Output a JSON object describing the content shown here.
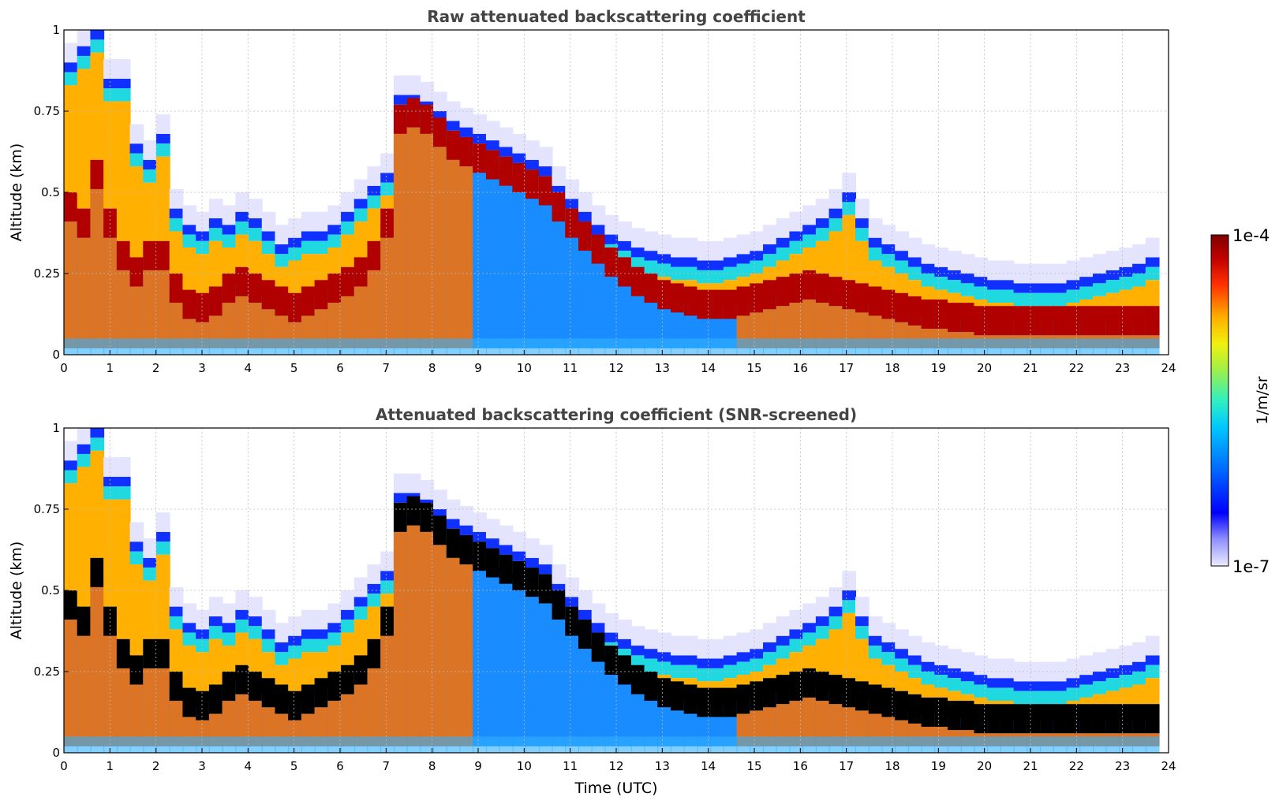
{
  "chart_data": [
    {
      "type": "heatmap",
      "title": "Raw attenuated backscattering coefficient",
      "xlabel": "",
      "ylabel": "Altitude (km)",
      "xlim": [
        0,
        24
      ],
      "ylim": [
        0,
        1
      ],
      "xticks": [
        "0",
        "1",
        "2",
        "3",
        "4",
        "5",
        "6",
        "7",
        "8",
        "9",
        "10",
        "11",
        "12",
        "13",
        "14",
        "15",
        "16",
        "17",
        "18",
        "19",
        "20",
        "21",
        "22",
        "23",
        "24"
      ],
      "yticks": [
        "0",
        "0.25",
        "0.5",
        "0.75",
        "1"
      ],
      "grid": true,
      "layer_top_km": [
        0.9,
        0.95,
        1.0,
        0.85,
        0.85,
        0.65,
        0.6,
        0.68,
        0.45,
        0.4,
        0.38,
        0.42,
        0.4,
        0.44,
        0.42,
        0.38,
        0.34,
        0.36,
        0.38,
        0.38,
        0.4,
        0.44,
        0.48,
        0.52,
        0.56,
        0.8,
        0.8,
        0.78,
        0.75,
        0.72,
        0.7,
        0.68,
        0.66,
        0.64,
        0.62,
        0.6,
        0.58,
        0.52,
        0.48,
        0.44,
        0.4,
        0.37,
        0.35,
        0.33,
        0.32,
        0.31,
        0.3,
        0.3,
        0.29,
        0.29,
        0.3,
        0.31,
        0.32,
        0.34,
        0.36,
        0.38,
        0.4,
        0.42,
        0.45,
        0.5,
        0.42,
        0.36,
        0.34,
        0.32,
        0.3,
        0.28,
        0.27,
        0.26,
        0.25,
        0.24,
        0.23,
        0.23,
        0.22,
        0.22,
        0.22,
        0.22,
        0.23,
        0.24,
        0.25,
        0.26,
        0.27,
        0.28,
        0.3
      ],
      "layer_peak_km": [
        0.45,
        0.4,
        0.55,
        0.4,
        0.3,
        0.25,
        0.3,
        0.3,
        0.2,
        0.15,
        0.14,
        0.16,
        0.2,
        0.22,
        0.2,
        0.18,
        0.16,
        0.14,
        0.16,
        0.18,
        0.2,
        0.22,
        0.25,
        0.3,
        0.4,
        0.72,
        0.74,
        0.72,
        0.68,
        0.64,
        0.62,
        0.6,
        0.58,
        0.56,
        0.54,
        0.52,
        0.5,
        0.45,
        0.4,
        0.36,
        0.32,
        0.28,
        0.25,
        0.22,
        0.2,
        0.18,
        0.17,
        0.16,
        0.15,
        0.15,
        0.15,
        0.16,
        0.17,
        0.18,
        0.19,
        0.2,
        0.21,
        0.2,
        0.19,
        0.18,
        0.17,
        0.16,
        0.15,
        0.14,
        0.13,
        0.12,
        0.12,
        0.11,
        0.11,
        0.1,
        0.1,
        0.1,
        0.1,
        0.1,
        0.1,
        0.1,
        0.1,
        0.1,
        0.1,
        0.1,
        0.1,
        0.1,
        0.1
      ],
      "time_axis": "0 to 23.5 UTC, 83 evenly spaced profiles"
    },
    {
      "type": "heatmap",
      "title": "Attenuated backscattering coefficient (SNR-screened)",
      "xlabel": "Time (UTC)",
      "ylabel": "Altitude (km)",
      "xlim": [
        0,
        24
      ],
      "ylim": [
        0,
        1
      ],
      "xticks": [
        "0",
        "1",
        "2",
        "3",
        "4",
        "5",
        "6",
        "7",
        "8",
        "9",
        "10",
        "11",
        "12",
        "13",
        "14",
        "15",
        "16",
        "17",
        "18",
        "19",
        "20",
        "21",
        "22",
        "23",
        "24"
      ],
      "yticks": [
        "0",
        "0.25",
        "0.5",
        "0.75",
        "1"
      ],
      "grid": true,
      "saturated_color": "#000000"
    }
  ],
  "colorbar": {
    "max_label": "1e-4",
    "min_label": "1e-7",
    "label": "1/m/sr",
    "colors": [
      "#e8e8ff",
      "#c8c8ff",
      "#8080ff",
      "#2020ff",
      "#0000e0",
      "#0040ff",
      "#0090ff",
      "#00d0ff",
      "#20e8d0",
      "#60f090",
      "#a0f050",
      "#e0f020",
      "#ffd000",
      "#ffa000",
      "#ff6000",
      "#ff2000",
      "#e00000",
      "#a00000",
      "#800000"
    ]
  }
}
